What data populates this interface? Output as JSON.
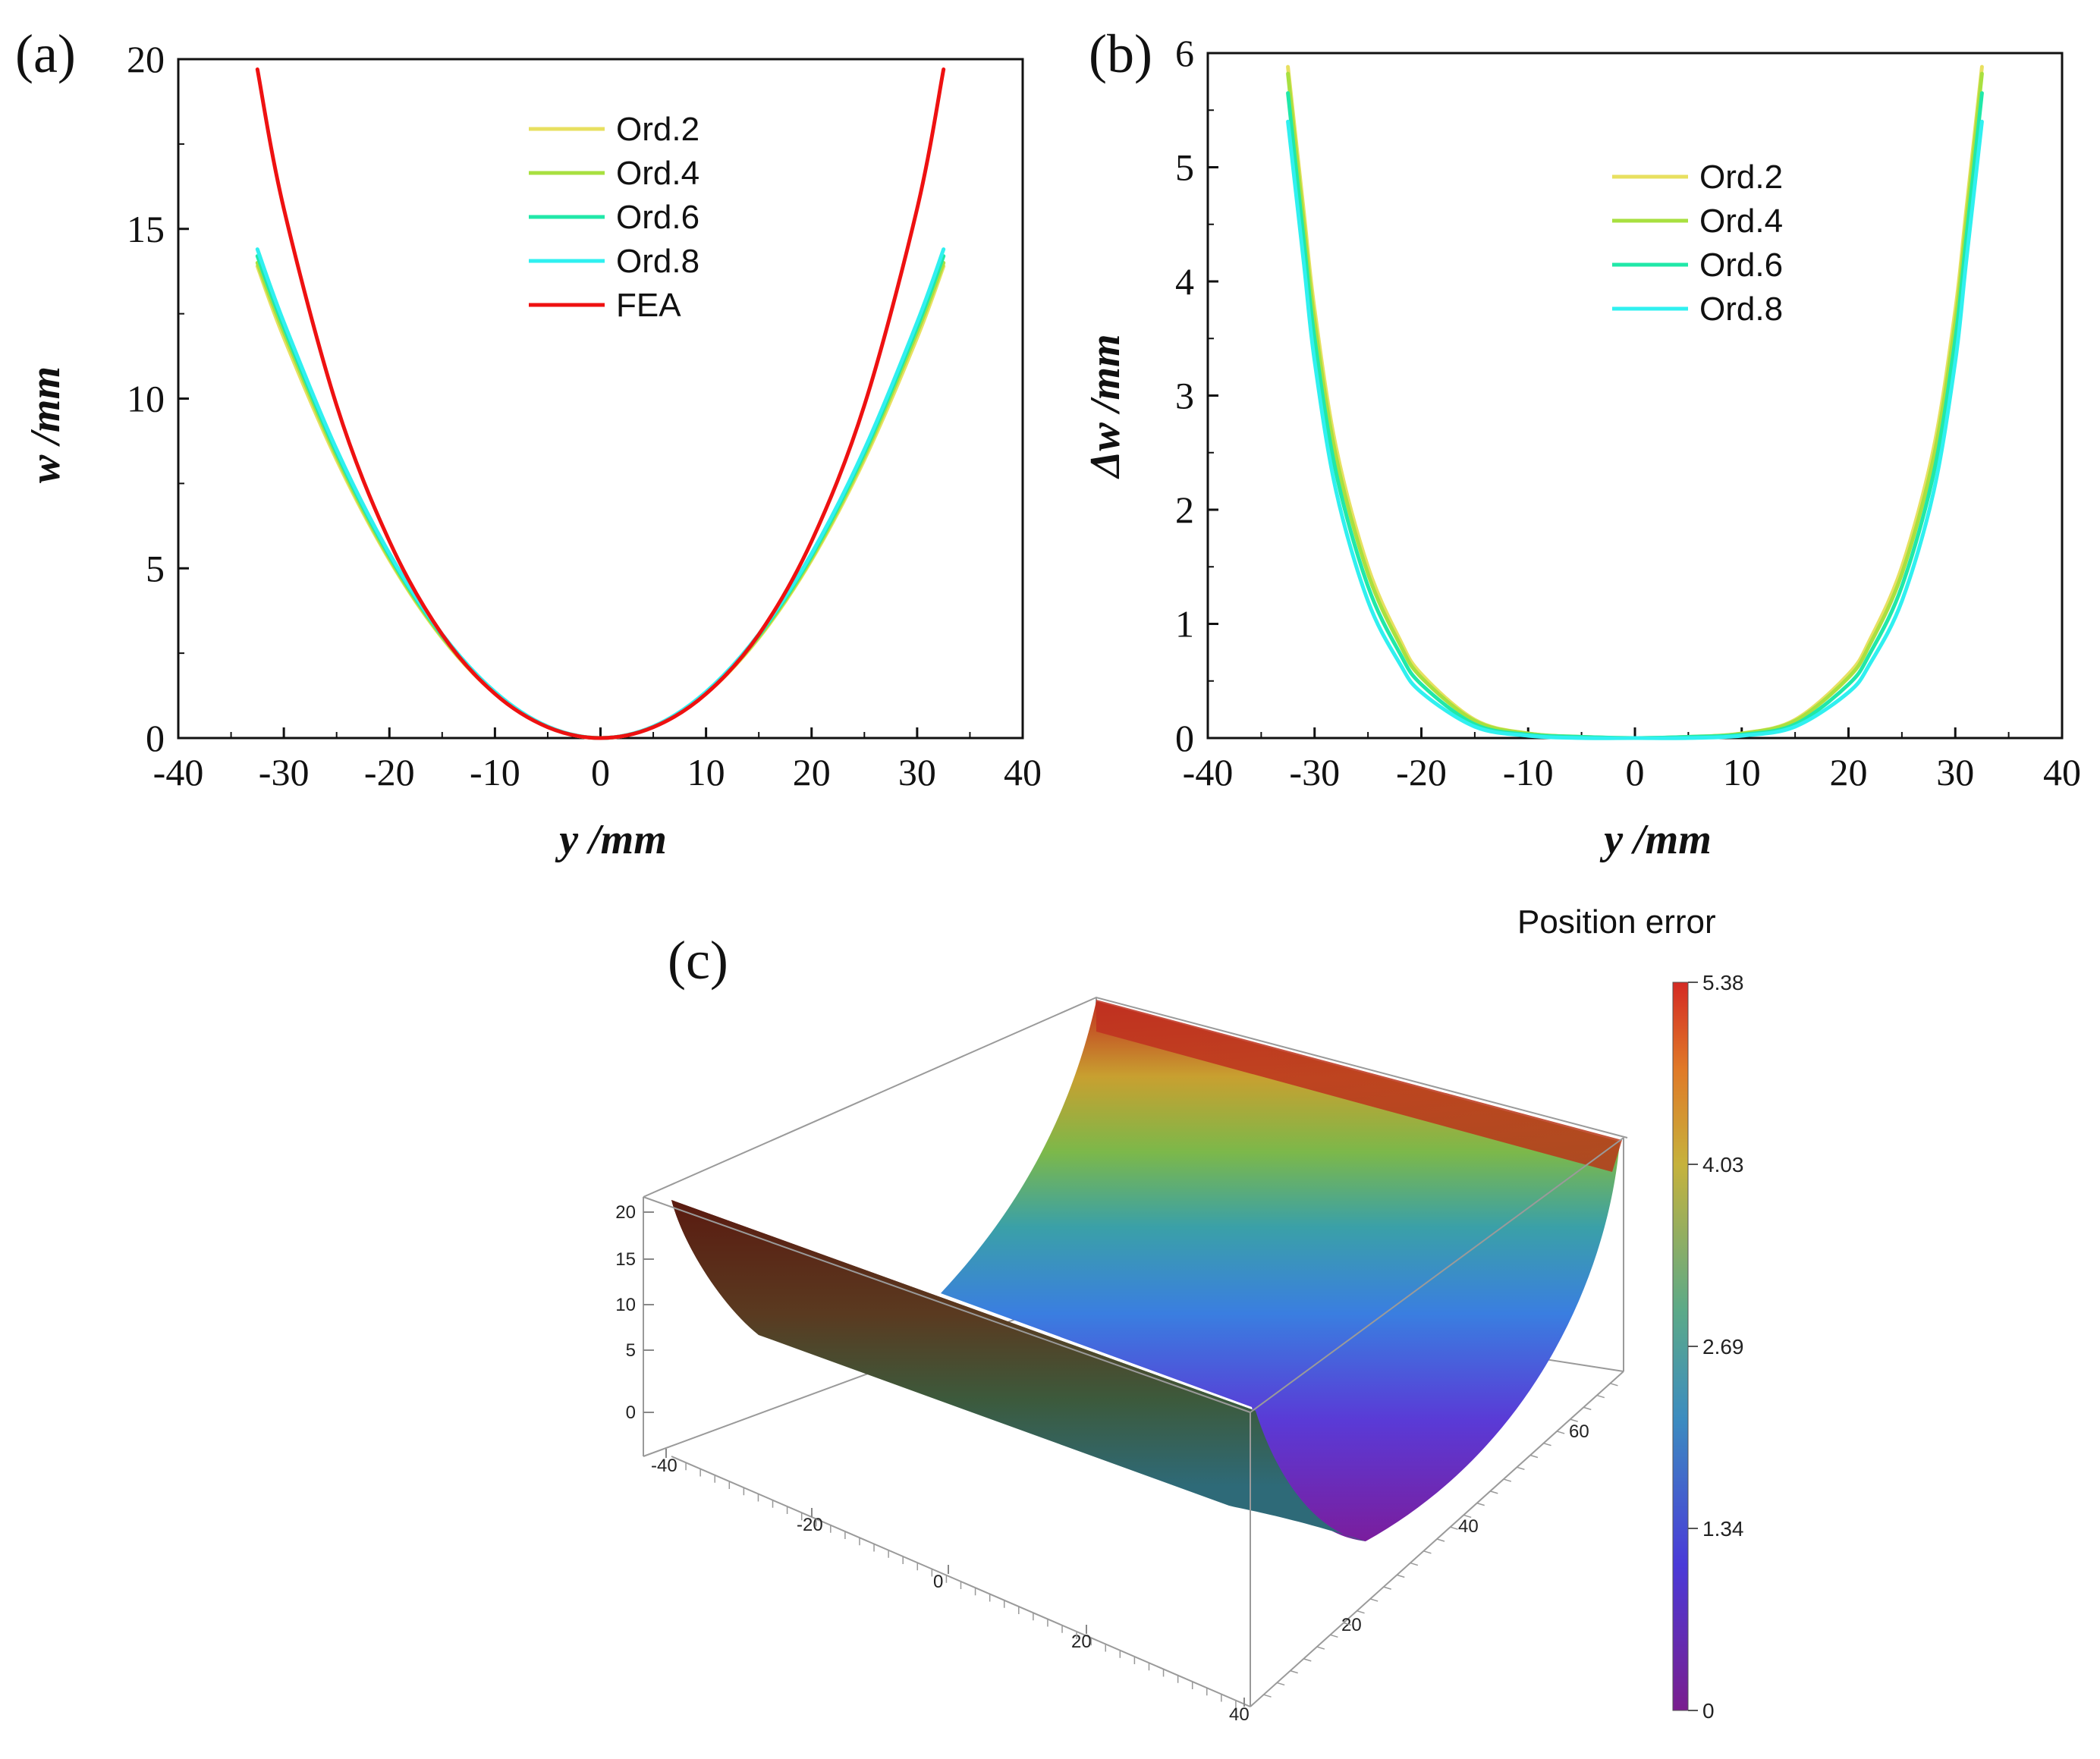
{
  "panels": {
    "a": {
      "label": "(a)",
      "chart_data": {
        "type": "line",
        "title": "",
        "xlabel": "y /mm",
        "ylabel": "w /mm",
        "xlim": [
          -40,
          40
        ],
        "ylim": [
          0,
          20
        ],
        "xticks": [
          -40,
          -30,
          -20,
          -10,
          0,
          10,
          20,
          30,
          40
        ],
        "yticks": [
          0,
          5,
          10,
          15,
          20
        ],
        "legend_position": "top-center",
        "series": [
          {
            "name": "Ord.2",
            "color": "#e8e060",
            "x": [
              -32.5,
              -30,
              -25,
              -20,
              -15,
              -10,
              -5,
              0,
              5,
              10,
              15,
              20,
              25,
              30,
              32.5
            ],
            "y": [
              13.9,
              11.8,
              8.2,
              5.25,
              2.95,
              1.31,
              0.33,
              0,
              0.33,
              1.31,
              2.95,
              5.25,
              8.2,
              11.8,
              13.9
            ]
          },
          {
            "name": "Ord.4",
            "color": "#a8e040",
            "x": [
              -32.5,
              -30,
              -25,
              -20,
              -15,
              -10,
              -5,
              0,
              5,
              10,
              15,
              20,
              25,
              30,
              32.5
            ],
            "y": [
              14.0,
              11.95,
              8.3,
              5.3,
              2.98,
              1.33,
              0.33,
              0,
              0.33,
              1.33,
              2.98,
              5.3,
              8.3,
              11.95,
              14.0
            ]
          },
          {
            "name": "Ord.6",
            "color": "#20e8a8",
            "x": [
              -32.5,
              -30,
              -25,
              -20,
              -15,
              -10,
              -5,
              0,
              5,
              10,
              15,
              20,
              25,
              30,
              32.5
            ],
            "y": [
              14.2,
              12.1,
              8.4,
              5.37,
              3.02,
              1.34,
              0.34,
              0,
              0.34,
              1.34,
              3.02,
              5.37,
              8.4,
              12.1,
              14.2
            ]
          },
          {
            "name": "Ord.8",
            "color": "#30f0f0",
            "x": [
              -32.5,
              -30,
              -25,
              -20,
              -15,
              -10,
              -5,
              0,
              5,
              10,
              15,
              20,
              25,
              30,
              32.5
            ],
            "y": [
              14.4,
              12.25,
              8.5,
              5.44,
              3.06,
              1.36,
              0.34,
              0,
              0.34,
              1.36,
              3.06,
              5.44,
              8.5,
              12.25,
              14.4
            ]
          },
          {
            "name": "FEA",
            "color": "#ee1111",
            "x": [
              -32.5,
              -30,
              -25,
              -20,
              -15,
              -10,
              -5,
              0,
              5,
              10,
              15,
              20,
              25,
              30,
              32.5
            ],
            "y": [
              19.7,
              15.6,
              9.8,
              5.8,
              3.05,
              1.3,
              0.32,
              0,
              0.32,
              1.3,
              3.05,
              5.8,
              9.8,
              15.6,
              19.7
            ]
          }
        ]
      }
    },
    "b": {
      "label": "(b)",
      "chart_data": {
        "type": "line",
        "title": "",
        "xlabel": "y /mm",
        "ylabel": "Δw /mm",
        "xlim": [
          -40,
          40
        ],
        "ylim": [
          0,
          6
        ],
        "xticks": [
          -40,
          -30,
          -20,
          -10,
          0,
          10,
          20,
          30,
          40
        ],
        "yticks": [
          0,
          1,
          2,
          3,
          4,
          5,
          6
        ],
        "legend_position": "top-center",
        "series": [
          {
            "name": "Ord.2",
            "color": "#e8e060",
            "x": [
              -32.5,
              -31,
              -30,
              -28,
              -25,
              -22,
              -20,
              -15,
              -10,
              -5,
              0,
              5,
              10,
              15,
              20,
              22,
              25,
              28,
              30,
              31,
              32.5
            ],
            "y": [
              5.88,
              4.6,
              3.75,
              2.55,
              1.5,
              0.86,
              0.56,
              0.16,
              0.04,
              0.01,
              0,
              0.01,
              0.04,
              0.16,
              0.56,
              0.86,
              1.5,
              2.55,
              3.75,
              4.6,
              5.88
            ]
          },
          {
            "name": "Ord.4",
            "color": "#a8e040",
            "x": [
              -32.5,
              -31,
              -30,
              -28,
              -25,
              -22,
              -20,
              -15,
              -10,
              -5,
              0,
              5,
              10,
              15,
              20,
              22,
              25,
              28,
              30,
              31,
              32.5
            ],
            "y": [
              5.82,
              4.5,
              3.65,
              2.47,
              1.44,
              0.82,
              0.53,
              0.15,
              0.04,
              0.01,
              0,
              0.01,
              0.04,
              0.15,
              0.53,
              0.82,
              1.44,
              2.47,
              3.65,
              4.5,
              5.82
            ]
          },
          {
            "name": "Ord.6",
            "color": "#20e8a8",
            "x": [
              -32.5,
              -31,
              -30,
              -28,
              -25,
              -22,
              -20,
              -15,
              -10,
              -5,
              0,
              5,
              10,
              15,
              20,
              22,
              25,
              28,
              30,
              31,
              32.5
            ],
            "y": [
              5.65,
              4.35,
              3.5,
              2.33,
              1.33,
              0.74,
              0.47,
              0.12,
              0.03,
              0.01,
              0,
              0.01,
              0.03,
              0.12,
              0.47,
              0.74,
              1.33,
              2.33,
              3.5,
              4.35,
              5.65
            ]
          },
          {
            "name": "Ord.8",
            "color": "#30f0f0",
            "x": [
              -32.5,
              -31,
              -30,
              -28,
              -25,
              -22,
              -20,
              -15,
              -10,
              -5,
              0,
              5,
              10,
              15,
              20,
              22,
              25,
              28,
              30,
              31,
              32.5
            ],
            "y": [
              5.4,
              4.15,
              3.3,
              2.17,
              1.2,
              0.65,
              0.4,
              0.1,
              0.02,
              0.0,
              0,
              0.0,
              0.02,
              0.1,
              0.4,
              0.65,
              1.2,
              2.17,
              3.3,
              4.15,
              5.4
            ]
          }
        ]
      }
    },
    "c": {
      "label": "(c)",
      "chart_data": {
        "type": "surface",
        "title": "",
        "colorbar_title": "Position error",
        "colorbar_ticks": [
          "5.38",
          "4.03",
          "2.69",
          "1.34",
          "0"
        ],
        "z_ticks": [
          "20",
          "15",
          "10",
          "5",
          "0"
        ],
        "y_ticks": [
          "-40",
          "-20",
          "0",
          "20",
          "40"
        ],
        "x_ticks": [
          "20",
          "40",
          "60"
        ],
        "y_range": [
          -40,
          40
        ],
        "x_range": [
          0,
          70
        ],
        "z_range": [
          0,
          20
        ]
      }
    }
  }
}
